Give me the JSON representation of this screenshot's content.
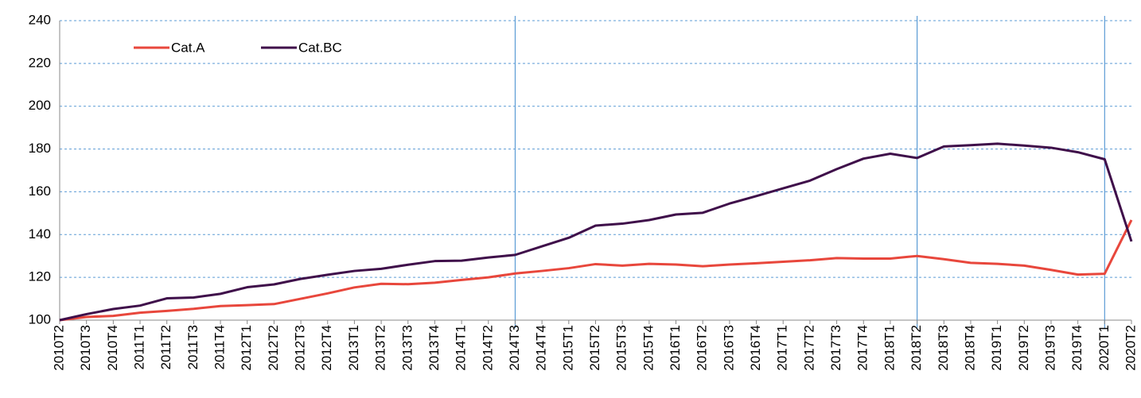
{
  "chart_data": {
    "type": "line",
    "categories": [
      "2010T2",
      "2010T3",
      "2010T4",
      "2011T1",
      "2011T2",
      "2011T3",
      "2011T4",
      "2012T1",
      "2012T2",
      "2012T3",
      "2012T4",
      "2013T1",
      "2013T2",
      "2013T3",
      "2013T4",
      "2014T1",
      "2014T2",
      "2014T3",
      "2014T4",
      "2015T1",
      "2015T2",
      "2015T3",
      "2015T4",
      "2016T1",
      "2016T2",
      "2016T3",
      "2016T4",
      "2017T1",
      "2017T2",
      "2017T3",
      "2017T4",
      "2018T1",
      "2018T2",
      "2018T3",
      "2018T4",
      "2019T1",
      "2019T2",
      "2019T3",
      "2019T4",
      "2020T1",
      "2020T2"
    ],
    "series": [
      {
        "name": "Cat.A",
        "color": "#e8473c",
        "values": [
          100,
          101.5,
          102,
          103.5,
          104.3,
          105.3,
          106.6,
          107,
          107.5,
          110,
          112.5,
          115.3,
          117,
          116.8,
          117.5,
          118.8,
          120,
          121.8,
          123,
          124.3,
          126.2,
          125.5,
          126.3,
          126,
          125.2,
          126,
          126.6,
          127.3,
          128,
          129,
          128.8,
          128.8,
          130,
          128.5,
          126.8,
          126.3,
          125.5,
          123.5,
          121.3,
          121.7,
          146.8
        ]
      },
      {
        "name": "Cat.BC",
        "color": "#3f0f4a",
        "values": [
          100,
          102.8,
          105.2,
          106.8,
          110.2,
          110.6,
          112.3,
          115.4,
          116.7,
          119.3,
          121.2,
          123,
          124,
          125.9,
          127.6,
          127.8,
          129.3,
          130.5,
          134.5,
          138.5,
          144.2,
          145.1,
          146.8,
          149.4,
          150.2,
          154.5,
          158,
          161.6,
          165.2,
          170.6,
          175.5,
          177.8,
          175.8,
          181.2,
          181.8,
          182.5,
          181.6,
          180.6,
          178.5,
          175.2,
          136.8
        ]
      }
    ],
    "ylim": [
      100,
      240
    ],
    "yticks": [
      100,
      120,
      140,
      160,
      180,
      200,
      220,
      240
    ],
    "grid": true,
    "vertical_lines": [
      17,
      32,
      39
    ],
    "vertical_line_color": "#5b9bd5",
    "legend": "top-left"
  }
}
